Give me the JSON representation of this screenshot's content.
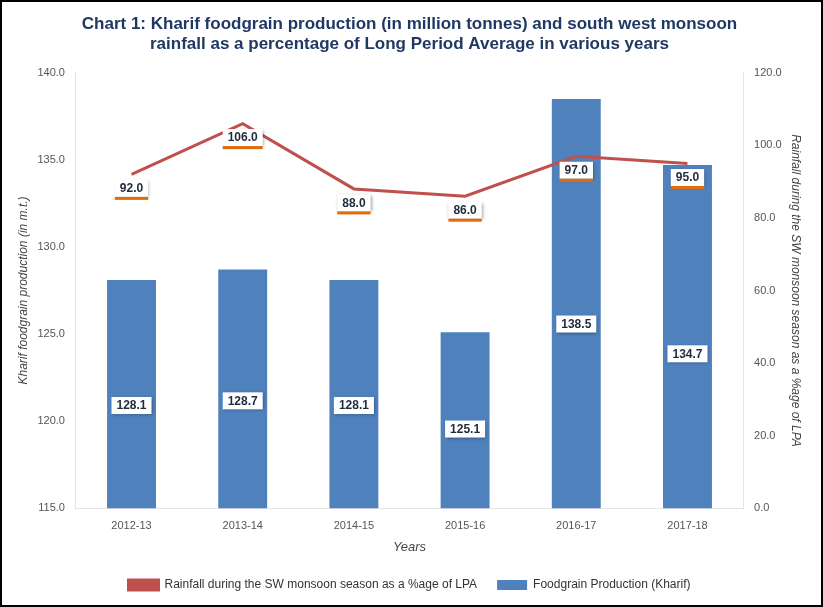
{
  "chart_data": {
    "type": "bar",
    "title": "Chart 1: Kharif foodgrain production (in million tonnes) and south west monsoon rainfall as a percentage of Long Period Average in various years",
    "x_label": "Years",
    "y_label": "Kharif foodgrain production (in m.t.)",
    "y2_label": "Rainfall during the SW monsoon season as a %age of LPA",
    "categories": [
      "2012-13",
      "2013-14",
      "2014-15",
      "2015-16",
      "2016-17",
      "2017-18"
    ],
    "series": [
      {
        "name": "Foodgrain Production (Kharif)",
        "type": "bar",
        "color": "#4f81bd",
        "values": [
          128.1,
          128.7,
          128.1,
          125.1,
          138.5,
          134.7
        ]
      },
      {
        "name": "Rainfall during the SW monsoon season as a %age of LPA",
        "type": "line",
        "color": "#c0504d",
        "axis": "y2",
        "values": [
          92,
          106,
          88,
          86,
          97,
          95
        ],
        "value_labels": [
          "92.0",
          "106.0",
          "88.0",
          "86.0",
          "97.0",
          "95.0"
        ]
      }
    ],
    "ylim": [
      115,
      140
    ],
    "yticks": [
      {
        "value": 115,
        "label": "115.0"
      },
      {
        "value": 120,
        "label": "120.0"
      },
      {
        "value": 125,
        "label": "125.0"
      },
      {
        "value": 130,
        "label": "130.0"
      },
      {
        "value": 135,
        "label": "135.0"
      },
      {
        "value": 140,
        "label": "140.0"
      }
    ],
    "y2lim": [
      0,
      120
    ],
    "y2ticks": [
      {
        "value": 0,
        "label": "0.0"
      },
      {
        "value": 20,
        "label": "20.0"
      },
      {
        "value": 40,
        "label": "40.0"
      },
      {
        "value": 60,
        "label": "60.0"
      },
      {
        "value": 80,
        "label": "80.0"
      },
      {
        "value": 100,
        "label": "100.0"
      },
      {
        "value": 120,
        "label": "120.0"
      }
    ],
    "data_labels": true,
    "grid": false,
    "legend": "bottom"
  }
}
